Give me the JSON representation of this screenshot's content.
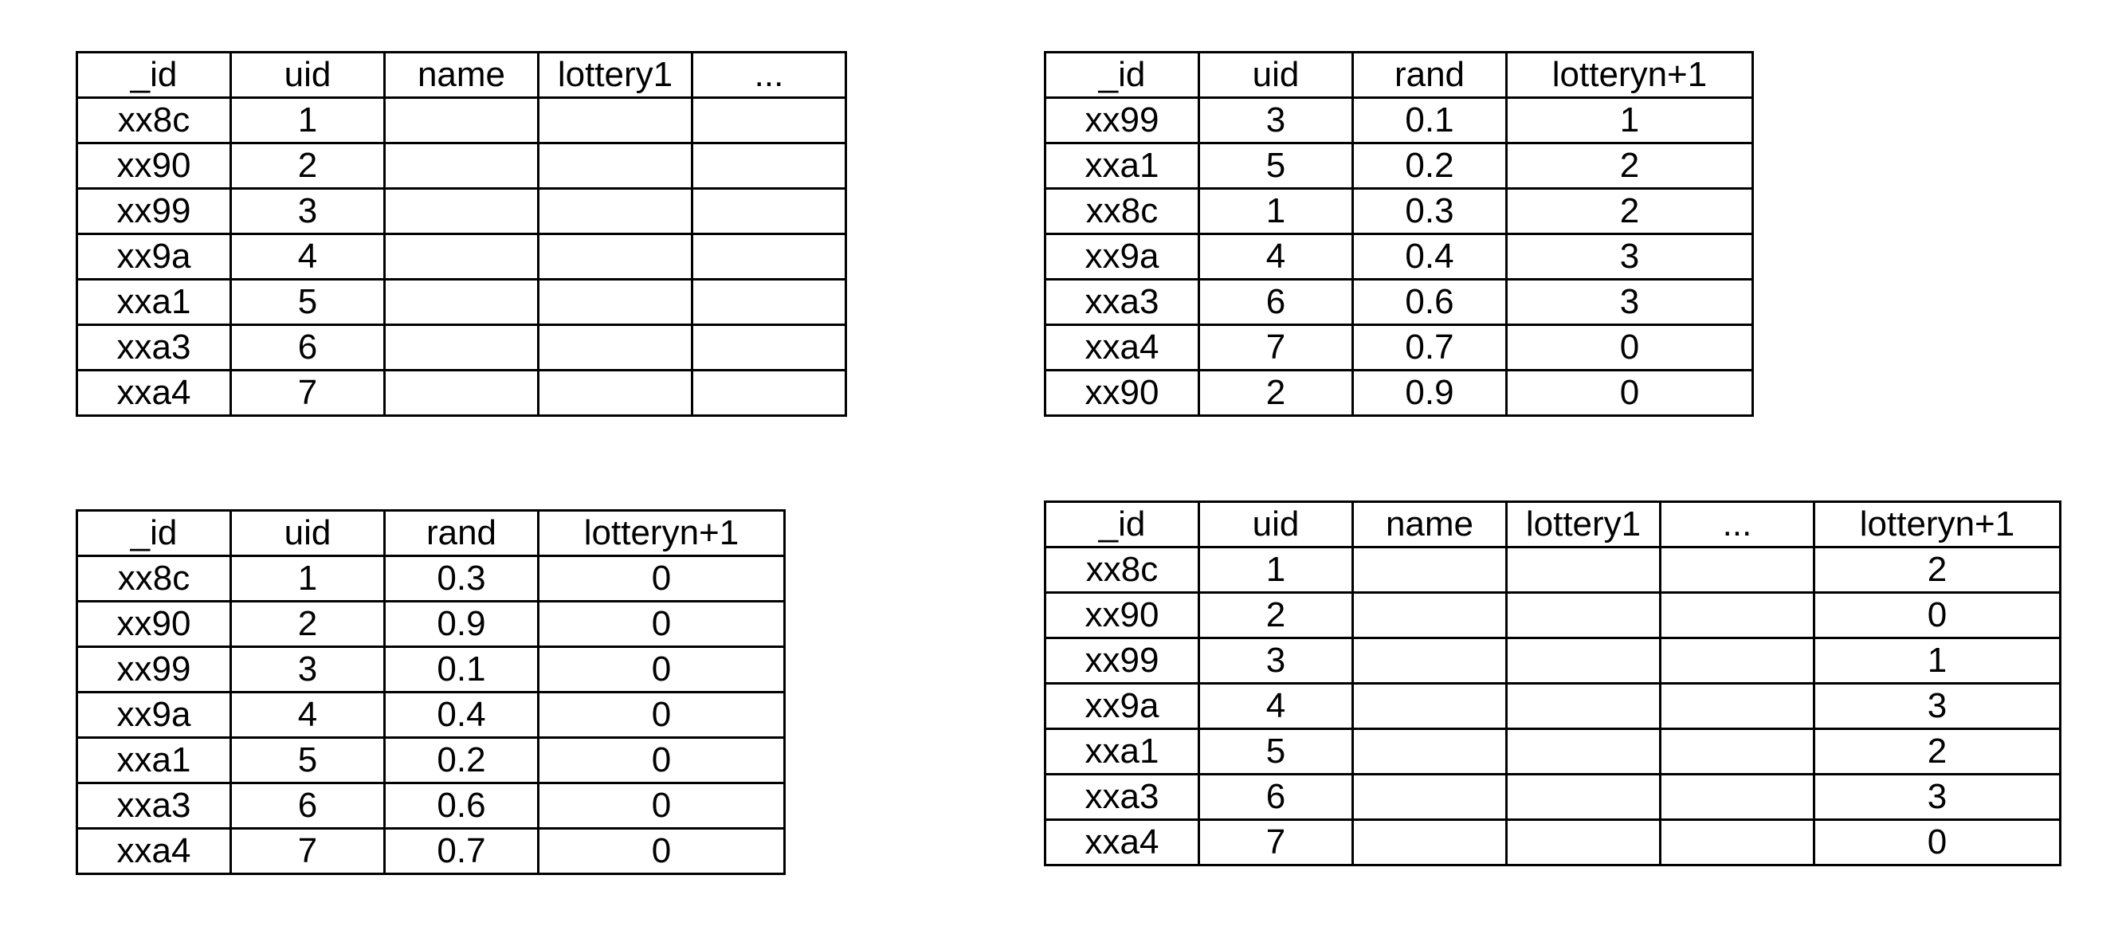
{
  "tables": {
    "users": {
      "headers": [
        "_id",
        "uid",
        "name",
        "lottery1",
        "..."
      ],
      "rows": [
        [
          "xx8c",
          "1",
          "",
          "",
          ""
        ],
        [
          "xx90",
          "2",
          "",
          "",
          ""
        ],
        [
          "xx99",
          "3",
          "",
          "",
          ""
        ],
        [
          "xx9a",
          "4",
          "",
          "",
          ""
        ],
        [
          "xxa1",
          "5",
          "",
          "",
          ""
        ],
        [
          "xxa3",
          "6",
          "",
          "",
          ""
        ],
        [
          "xxa4",
          "7",
          "",
          "",
          ""
        ]
      ]
    },
    "sorted": {
      "headers": [
        "_id",
        "uid",
        "rand",
        "lotteryn+1"
      ],
      "rows": [
        [
          "xx99",
          "3",
          "0.1",
          "1"
        ],
        [
          "xxa1",
          "5",
          "0.2",
          "2"
        ],
        [
          "xx8c",
          "1",
          "0.3",
          "2"
        ],
        [
          "xx9a",
          "4",
          "0.4",
          "3"
        ],
        [
          "xxa3",
          "6",
          "0.6",
          "3"
        ],
        [
          "xxa4",
          "7",
          "0.7",
          "0"
        ],
        [
          "xx90",
          "2",
          "0.9",
          "0"
        ]
      ]
    },
    "rand": {
      "headers": [
        "_id",
        "uid",
        "rand",
        "lotteryn+1"
      ],
      "rows": [
        [
          "xx8c",
          "1",
          "0.3",
          "0"
        ],
        [
          "xx90",
          "2",
          "0.9",
          "0"
        ],
        [
          "xx99",
          "3",
          "0.1",
          "0"
        ],
        [
          "xx9a",
          "4",
          "0.4",
          "0"
        ],
        [
          "xxa1",
          "5",
          "0.2",
          "0"
        ],
        [
          "xxa3",
          "6",
          "0.6",
          "0"
        ],
        [
          "xxa4",
          "7",
          "0.7",
          "0"
        ]
      ]
    },
    "result": {
      "headers": [
        "_id",
        "uid",
        "name",
        "lottery1",
        "...",
        "lotteryn+1"
      ],
      "rows": [
        [
          "xx8c",
          "1",
          "",
          "",
          "",
          "2"
        ],
        [
          "xx90",
          "2",
          "",
          "",
          "",
          "0"
        ],
        [
          "xx99",
          "3",
          "",
          "",
          "",
          "1"
        ],
        [
          "xx9a",
          "4",
          "",
          "",
          "",
          "3"
        ],
        [
          "xxa1",
          "5",
          "",
          "",
          "",
          "2"
        ],
        [
          "xxa3",
          "6",
          "",
          "",
          "",
          "3"
        ],
        [
          "xxa4",
          "7",
          "",
          "",
          "",
          "0"
        ]
      ]
    }
  }
}
